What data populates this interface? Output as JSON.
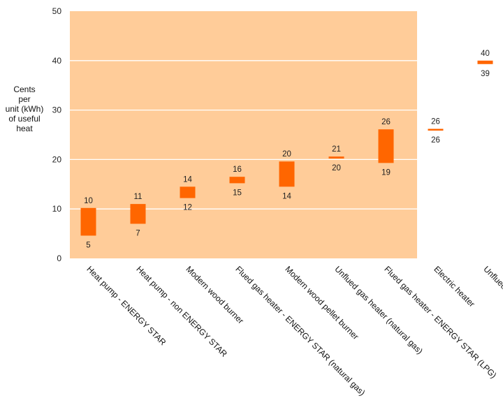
{
  "chart_data": {
    "type": "bar",
    "title": "",
    "xlabel": "",
    "ylabel_lines": [
      "Cents",
      "per",
      "unit (kWh)",
      "of useful",
      "heat"
    ],
    "ylim": [
      0,
      50
    ],
    "yticks": [
      0,
      10,
      20,
      30,
      40,
      50
    ],
    "grid": true,
    "colors": {
      "plot_bg": "#ffcc99",
      "bar": "#ff6600",
      "grid": "#ffffff"
    },
    "categories": [
      "Heat pump - ENERGY STAR",
      "Heat pump - non ENERGY STAR",
      "Modern wood burner",
      "Flued gas heater - ENERGY STAR (natural gas)",
      "Modern wood pellet burner",
      "Unflued gas heater (natural gas)",
      "Flued gas heater - ENERGY STAR (LPG)",
      "Electric heater",
      "Unflued gas cabinet heater (LPG)"
    ],
    "series": [
      {
        "low": 5,
        "high": 10
      },
      {
        "low": 7,
        "high": 11
      },
      {
        "low": 12,
        "high": 14
      },
      {
        "low": 15,
        "high": 16
      },
      {
        "low": 14,
        "high": 20
      },
      {
        "low": 20,
        "high": 21
      },
      {
        "low": 19,
        "high": 26
      },
      {
        "low": 26,
        "high": 26
      },
      {
        "low": 39,
        "high": 40
      }
    ],
    "bar_draw": [
      {
        "low": 4.6,
        "high": 10.2
      },
      {
        "low": 7.0,
        "high": 11.0
      },
      {
        "low": 12.2,
        "high": 14.5
      },
      {
        "low": 15.2,
        "high": 16.5
      },
      {
        "low": 14.5,
        "high": 19.6
      },
      {
        "low": 20.2,
        "high": 20.6
      },
      {
        "low": 19.3,
        "high": 26.1
      },
      {
        "low": 25.9,
        "high": 26.2
      },
      {
        "low": 39.3,
        "high": 40.0
      }
    ]
  }
}
